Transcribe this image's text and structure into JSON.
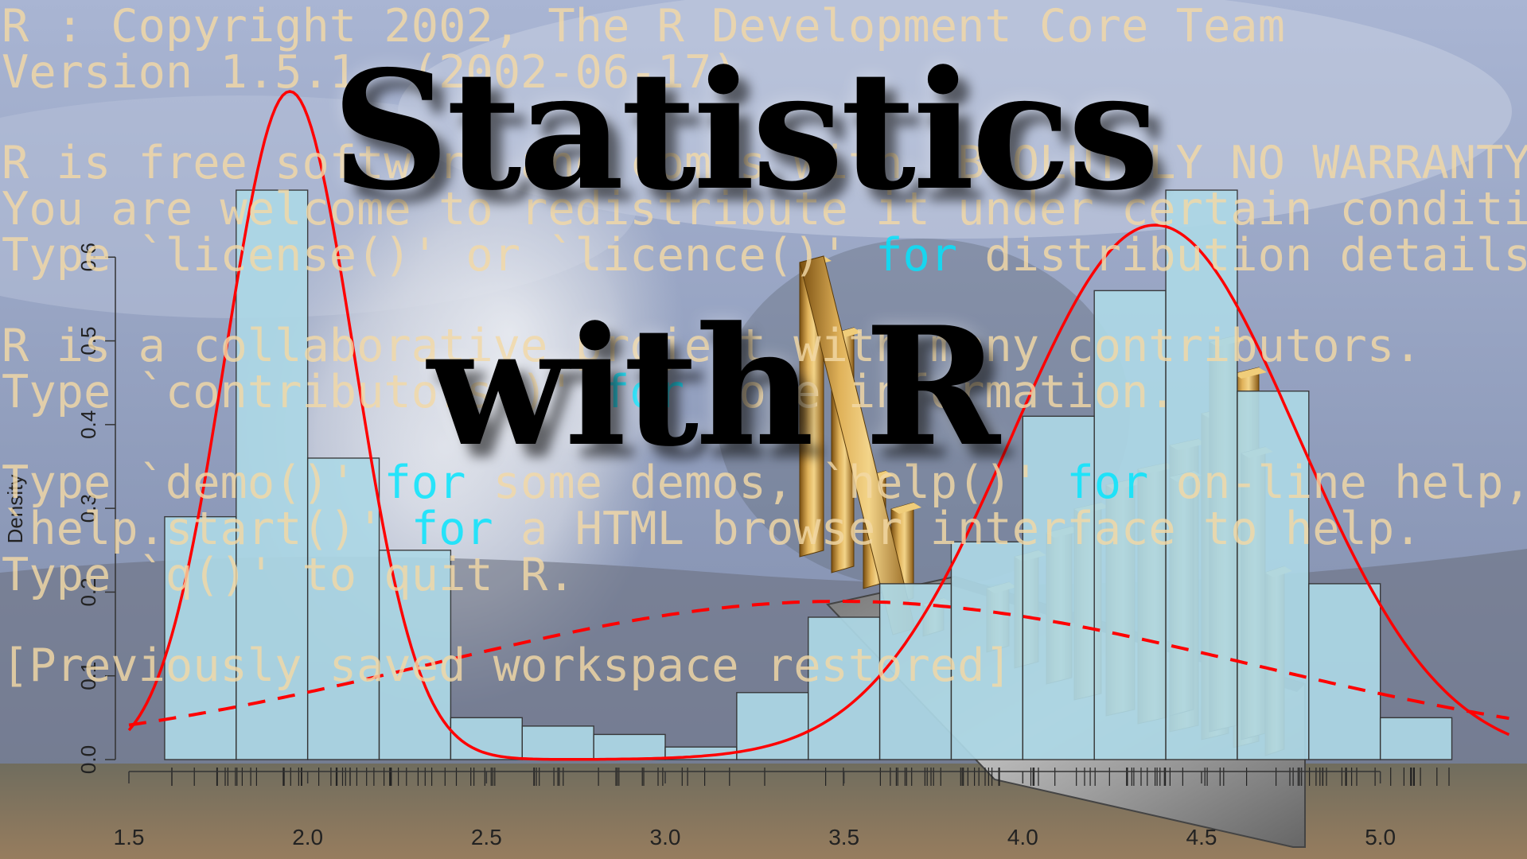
{
  "title": {
    "line1": "Statistics",
    "line2": "with R"
  },
  "console": {
    "lines": [
      {
        "parts": [
          {
            "t": "R : Copyright 2002, The R Development Core Team"
          }
        ]
      },
      {
        "parts": [
          {
            "t": "Version 1.5.1  (2002-06-17)"
          }
        ]
      },
      {
        "parts": [
          {
            "t": "R is free software and comes with ABSOLUTELY NO WARRANTY."
          }
        ]
      },
      {
        "parts": [
          {
            "t": "You are welcome to redistribute it under certain conditions."
          }
        ]
      },
      {
        "parts": [
          {
            "t": "Type `license()' or `licence()' "
          },
          {
            "t": "for",
            "kw": true
          },
          {
            "t": " distribution details."
          }
        ]
      },
      {
        "parts": [
          {
            "t": "R is a collaborative project with many contributors."
          }
        ]
      },
      {
        "parts": [
          {
            "t": "Type `contributors()' "
          },
          {
            "t": "for",
            "kw": true
          },
          {
            "t": " more information."
          }
        ]
      },
      {
        "parts": [
          {
            "t": "Type `demo()' "
          },
          {
            "t": "for",
            "kw": true
          },
          {
            "t": " some demos, `help()' "
          },
          {
            "t": "for",
            "kw": true
          },
          {
            "t": " on-line help, or"
          }
        ]
      },
      {
        "parts": [
          {
            "t": "`help.start()' "
          },
          {
            "t": "for",
            "kw": true
          },
          {
            "t": " a HTML browser interface to help."
          }
        ]
      },
      {
        "parts": [
          {
            "t": "Type `q()' to quit R."
          }
        ]
      },
      {
        "parts": [
          {
            "t": "[Previously saved workspace restored]"
          }
        ]
      }
    ]
  },
  "chart_data": {
    "type": "bar",
    "ylabel": "Density",
    "xlim": [
      1.5,
      5.25
    ],
    "ylim": [
      0,
      0.7
    ],
    "x_ticks": [
      "1.5",
      "2.0",
      "2.5",
      "3.0",
      "3.5",
      "4.0",
      "4.5",
      "5.0"
    ],
    "y_ticks": [
      "0.0",
      "0.1",
      "0.2",
      "0.3",
      "0.4",
      "0.5",
      "0.6"
    ],
    "bin_edges": [
      1.6,
      1.8,
      2.0,
      2.2,
      2.4,
      2.6,
      2.8,
      3.0,
      3.2,
      3.4,
      3.6,
      3.8,
      4.0,
      4.2,
      4.4,
      4.6,
      4.8,
      5.0,
      5.2
    ],
    "values": [
      0.29,
      0.68,
      0.36,
      0.25,
      0.05,
      0.04,
      0.03,
      0.015,
      0.08,
      0.17,
      0.21,
      0.26,
      0.41,
      0.56,
      0.68,
      0.44,
      0.21,
      0.05
    ],
    "bar_color": "#add8e6",
    "density_color": "#ff0000"
  }
}
